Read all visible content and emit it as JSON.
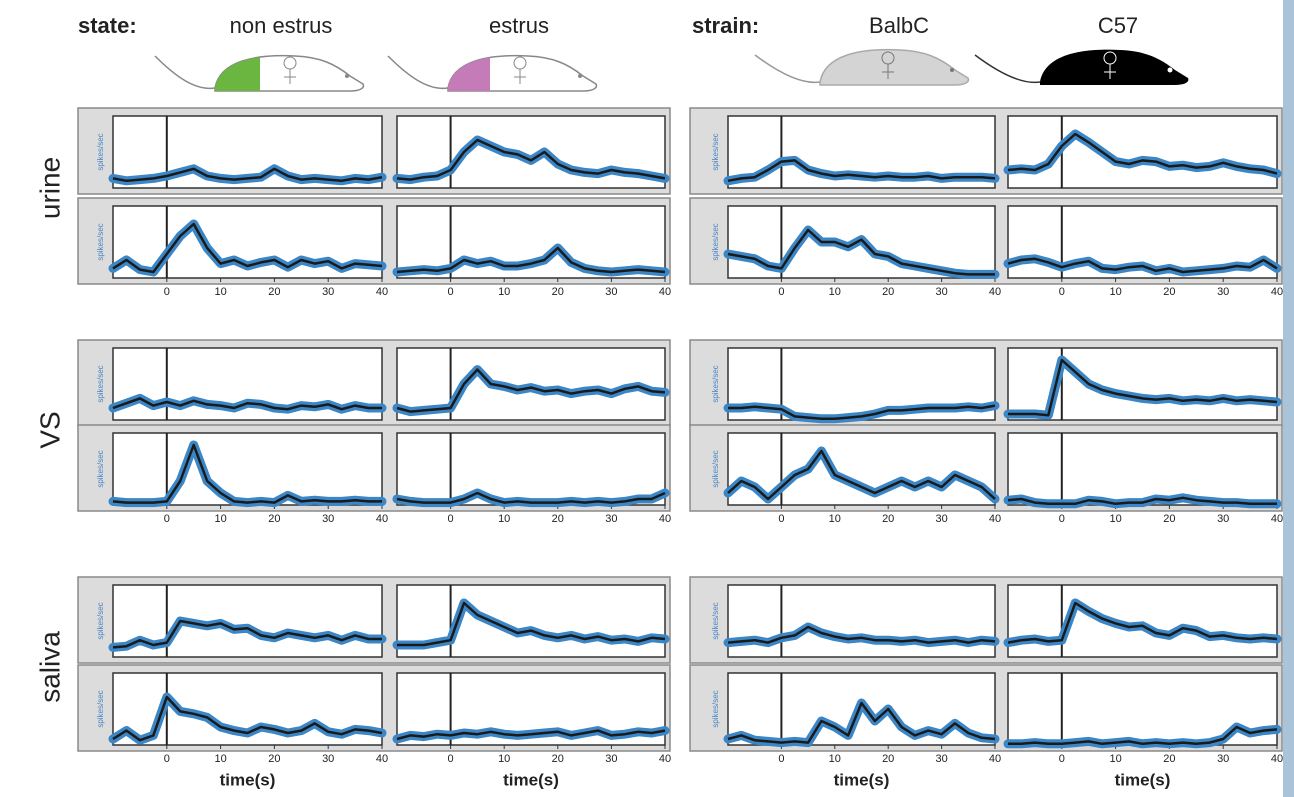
{
  "header": {
    "state_label": "state:",
    "states": [
      "non estrus",
      "estrus"
    ],
    "strain_label": "strain:",
    "strains": [
      "BalbC",
      "C57"
    ]
  },
  "row_labels": [
    "urine",
    "VS",
    "saliva"
  ],
  "chart_data": [
    {
      "type": "line",
      "ylabel": "spikes/sec",
      "x": [
        -10,
        -7.5,
        -5,
        -2.5,
        0,
        2.5,
        5,
        7.5,
        10,
        12.5,
        15,
        17.5,
        20,
        22.5,
        25,
        27.5,
        30,
        32.5,
        35,
        37.5,
        40
      ],
      "values": [
        0.8,
        0.6,
        0.7,
        0.8,
        1,
        1.3,
        1.6,
        1,
        0.8,
        0.7,
        0.8,
        0.9,
        1.6,
        1,
        0.7,
        0.8,
        0.7,
        0.6,
        0.8,
        0.7,
        0.9
      ],
      "xlim": [
        -10,
        40
      ],
      "ylim": [
        0,
        6
      ],
      "vline": 0,
      "color": "#3b86c6"
    },
    {
      "type": "line",
      "x": [
        -10,
        -7.5,
        -5,
        -2.5,
        0,
        2.5,
        5,
        7.5,
        10,
        12.5,
        15,
        17.5,
        20,
        22.5,
        25,
        27.5,
        30,
        32.5,
        35,
        37.5,
        40
      ],
      "values": [
        0.8,
        0.7,
        0.9,
        1,
        1.5,
        3,
        4,
        3.5,
        3,
        2.8,
        2.3,
        3,
        2,
        1.5,
        1.3,
        1.2,
        1.5,
        1.3,
        1.2,
        1,
        0.8
      ],
      "xlim": [
        -10,
        40
      ],
      "ylim": [
        0,
        6
      ],
      "vline": 0,
      "color": "#3b86c6"
    },
    {
      "type": "line",
      "ylabel": "spikes/sec",
      "x": [
        -10,
        -7.5,
        -5,
        -2.5,
        0,
        2.5,
        5,
        7.5,
        10,
        12.5,
        15,
        17.5,
        20,
        22.5,
        25,
        27.5,
        30,
        32.5,
        35,
        37.5,
        40
      ],
      "values": [
        0.6,
        0.8,
        0.9,
        1.5,
        2.2,
        2.3,
        1.5,
        1.2,
        1,
        1.1,
        1,
        0.9,
        1,
        0.9,
        0.9,
        1,
        0.8,
        0.9,
        0.9,
        0.9,
        0.8
      ],
      "xlim": [
        -10,
        40
      ],
      "ylim": [
        0,
        6
      ],
      "vline": 0,
      "color": "#3b86c6"
    },
    {
      "type": "line",
      "x": [
        -10,
        -7.5,
        -5,
        -2.5,
        0,
        2.5,
        5,
        7.5,
        10,
        12.5,
        15,
        17.5,
        20,
        22.5,
        25,
        27.5,
        30,
        32.5,
        35,
        37.5,
        40
      ],
      "values": [
        1.5,
        1.6,
        1.5,
        2,
        3.5,
        4.5,
        3.8,
        3,
        2.2,
        2,
        2.3,
        2.2,
        1.8,
        1.9,
        1.7,
        1.8,
        2.1,
        1.8,
        1.6,
        1.5,
        1.2
      ],
      "xlim": [
        -10,
        40
      ],
      "ylim": [
        0,
        6
      ],
      "vline": 0,
      "color": "#3b86c6"
    },
    {
      "type": "line",
      "ylabel": "spikes/sec",
      "x": [
        -10,
        -7.5,
        -5,
        -2.5,
        0,
        2.5,
        5,
        7.5,
        10,
        12.5,
        15,
        17.5,
        20,
        22.5,
        25,
        27.5,
        30,
        32.5,
        35,
        37.5,
        40
      ],
      "values": [
        0.8,
        1.5,
        0.7,
        0.5,
        2,
        3.5,
        4.5,
        2.5,
        1.2,
        1.5,
        1,
        1.3,
        1.5,
        0.9,
        1.5,
        1.2,
        1.4,
        0.8,
        1.2,
        1.1,
        1
      ],
      "xlim": [
        -10,
        40
      ],
      "ylim": [
        0,
        6
      ],
      "xticks": [
        0,
        10,
        20,
        30,
        40
      ],
      "vline": 0,
      "color": "#3b86c6"
    },
    {
      "type": "line",
      "x": [
        -10,
        -7.5,
        -5,
        -2.5,
        0,
        2.5,
        5,
        7.5,
        10,
        12.5,
        15,
        17.5,
        20,
        22.5,
        25,
        27.5,
        30,
        32.5,
        35,
        37.5,
        40
      ],
      "values": [
        0.5,
        0.6,
        0.7,
        0.6,
        0.8,
        1.5,
        1.2,
        1.4,
        1,
        1,
        1.2,
        1.5,
        2.5,
        1.3,
        0.8,
        0.6,
        0.5,
        0.6,
        0.7,
        0.6,
        0.5
      ],
      "xlim": [
        -10,
        40
      ],
      "ylim": [
        0,
        6
      ],
      "xticks": [
        0,
        10,
        20,
        30,
        40
      ],
      "vline": 0,
      "color": "#3b86c6"
    },
    {
      "type": "line",
      "ylabel": "spikes/sec",
      "x": [
        -10,
        -7.5,
        -5,
        -2.5,
        0,
        2.5,
        5,
        7.5,
        10,
        12.5,
        15,
        17.5,
        20,
        22.5,
        25,
        27.5,
        30,
        32.5,
        35,
        37.5,
        40
      ],
      "values": [
        2,
        1.8,
        1.6,
        1,
        0.8,
        2.5,
        4,
        3,
        3,
        2.6,
        3.2,
        2,
        1.8,
        1.2,
        1,
        0.8,
        0.6,
        0.4,
        0.3,
        0.3,
        0.3
      ],
      "xlim": [
        -10,
        40
      ],
      "ylim": [
        0,
        6
      ],
      "xticks": [
        0,
        10,
        20,
        30,
        40
      ],
      "vline": 0,
      "color": "#3b86c6"
    },
    {
      "type": "line",
      "x": [
        -10,
        -7.5,
        -5,
        -2.5,
        0,
        2.5,
        5,
        7.5,
        10,
        12.5,
        15,
        17.5,
        20,
        22.5,
        25,
        27.5,
        30,
        32.5,
        35,
        37.5,
        40
      ],
      "values": [
        1.2,
        1.5,
        1.6,
        1.3,
        0.9,
        1.2,
        1.4,
        0.8,
        0.7,
        0.9,
        1,
        0.6,
        0.8,
        0.5,
        0.6,
        0.7,
        0.8,
        1,
        0.9,
        1.5,
        0.8
      ],
      "xlim": [
        -10,
        40
      ],
      "ylim": [
        0,
        6
      ],
      "xticks": [
        0,
        10,
        20,
        30,
        40
      ],
      "vline": 0,
      "color": "#3b86c6"
    },
    {
      "type": "line",
      "ylabel": "spikes/sec",
      "x": [
        -10,
        -7.5,
        -5,
        -2.5,
        0,
        2.5,
        5,
        7.5,
        10,
        12.5,
        15,
        17.5,
        20,
        22.5,
        25,
        27.5,
        30,
        32.5,
        35,
        37.5,
        40
      ],
      "values": [
        1,
        1.4,
        1.8,
        1.2,
        1.5,
        1.2,
        1.6,
        1.3,
        1.2,
        1,
        1.4,
        1.3,
        1,
        0.9,
        1.2,
        1.1,
        1.3,
        0.9,
        1.2,
        1,
        1
      ],
      "xlim": [
        -10,
        40
      ],
      "ylim": [
        0,
        6
      ],
      "vline": 0,
      "color": "#3b86c6"
    },
    {
      "type": "line",
      "x": [
        -10,
        -7.5,
        -5,
        -2.5,
        0,
        2.5,
        5,
        7.5,
        10,
        12.5,
        15,
        17.5,
        20,
        22.5,
        25,
        27.5,
        30,
        32.5,
        35,
        37.5,
        40
      ],
      "values": [
        1,
        0.7,
        0.8,
        0.9,
        1,
        3,
        4.2,
        3,
        2.8,
        2.5,
        2.7,
        2.4,
        2.5,
        2.2,
        2.4,
        2.5,
        2.2,
        2.6,
        2.8,
        2.4,
        2.3
      ],
      "xlim": [
        -10,
        40
      ],
      "ylim": [
        0,
        6
      ],
      "vline": 0,
      "color": "#3b86c6"
    },
    {
      "type": "line",
      "ylabel": "spikes/sec",
      "x": [
        -10,
        -7.5,
        -5,
        -2.5,
        0,
        2.5,
        5,
        7.5,
        10,
        12.5,
        15,
        17.5,
        20,
        22.5,
        25,
        27.5,
        30,
        32.5,
        35,
        37.5,
        40
      ],
      "values": [
        1,
        1,
        1.1,
        1,
        0.9,
        0.3,
        0.2,
        0.1,
        0.1,
        0.2,
        0.3,
        0.5,
        0.8,
        0.8,
        0.9,
        1,
        1,
        1,
        1.1,
        1,
        1.2
      ],
      "xlim": [
        -10,
        40
      ],
      "ylim": [
        0,
        6
      ],
      "vline": 0,
      "color": "#3b86c6"
    },
    {
      "type": "line",
      "x": [
        -10,
        -7.5,
        -5,
        -2.5,
        0,
        2.5,
        5,
        7.5,
        10,
        12.5,
        15,
        17.5,
        20,
        22.5,
        25,
        27.5,
        30,
        32.5,
        35,
        37.5,
        40
      ],
      "values": [
        0.5,
        0.5,
        0.5,
        0.4,
        5,
        4,
        3,
        2.5,
        2.2,
        2,
        1.8,
        1.7,
        1.8,
        1.6,
        1.7,
        1.6,
        1.8,
        1.6,
        1.7,
        1.6,
        1.5
      ],
      "xlim": [
        -10,
        40
      ],
      "ylim": [
        0,
        6
      ],
      "vline": 0,
      "color": "#3b86c6"
    },
    {
      "type": "line",
      "ylabel": "spikes/sec",
      "x": [
        -10,
        -7.5,
        -5,
        -2.5,
        0,
        2.5,
        5,
        7.5,
        10,
        12.5,
        15,
        17.5,
        20,
        22.5,
        25,
        27.5,
        30,
        32.5,
        35,
        37.5,
        40
      ],
      "values": [
        0.3,
        0.2,
        0.2,
        0.2,
        0.3,
        2,
        5,
        2,
        1,
        0.3,
        0.2,
        0.3,
        0.2,
        0.8,
        0.3,
        0.4,
        0.3,
        0.3,
        0.4,
        0.3,
        0.3
      ],
      "xlim": [
        -10,
        40
      ],
      "ylim": [
        0,
        6
      ],
      "xticks": [
        0,
        10,
        20,
        30,
        40
      ],
      "vline": 0,
      "color": "#3b86c6"
    },
    {
      "type": "line",
      "x": [
        -10,
        -7.5,
        -5,
        -2.5,
        0,
        2.5,
        5,
        7.5,
        10,
        12.5,
        15,
        17.5,
        20,
        22.5,
        25,
        27.5,
        30,
        32.5,
        35,
        37.5,
        40
      ],
      "values": [
        0.5,
        0.3,
        0.2,
        0.2,
        0.2,
        0.5,
        1,
        0.5,
        0.2,
        0.3,
        0.2,
        0.2,
        0.2,
        0.3,
        0.2,
        0.3,
        0.2,
        0.3,
        0.5,
        0.5,
        1
      ],
      "xlim": [
        -10,
        40
      ],
      "ylim": [
        0,
        6
      ],
      "xticks": [
        0,
        10,
        20,
        30,
        40
      ],
      "vline": 0,
      "color": "#3b86c6"
    },
    {
      "type": "line",
      "ylabel": "spikes/sec",
      "x": [
        -10,
        -7.5,
        -5,
        -2.5,
        0,
        2.5,
        5,
        7.5,
        10,
        12.5,
        15,
        17.5,
        20,
        22.5,
        25,
        27.5,
        30,
        32.5,
        35,
        37.5,
        40
      ],
      "values": [
        1,
        2,
        1.5,
        0.5,
        1.5,
        2.5,
        3,
        4.5,
        2.5,
        2,
        1.5,
        1,
        1.5,
        2,
        1.5,
        2,
        1.5,
        2.5,
        2,
        1.5,
        0.5
      ],
      "xlim": [
        -10,
        40
      ],
      "ylim": [
        0,
        6
      ],
      "xticks": [
        0,
        10,
        20,
        30,
        40
      ],
      "vline": 0,
      "color": "#3b86c6"
    },
    {
      "type": "line",
      "x": [
        -10,
        -7.5,
        -5,
        -2.5,
        0,
        2.5,
        5,
        7.5,
        10,
        12.5,
        15,
        17.5,
        20,
        22.5,
        25,
        27.5,
        30,
        32.5,
        35,
        37.5,
        40
      ],
      "values": [
        0.4,
        0.5,
        0.2,
        0.1,
        0.1,
        0.1,
        0.4,
        0.3,
        0.1,
        0.2,
        0.2,
        0.5,
        0.4,
        0.6,
        0.4,
        0.3,
        0.2,
        0.2,
        0.1,
        0.1,
        0.1
      ],
      "xlim": [
        -10,
        40
      ],
      "ylim": [
        0,
        6
      ],
      "xticks": [
        0,
        10,
        20,
        30,
        40
      ],
      "vline": 0,
      "color": "#3b86c6"
    },
    {
      "type": "line",
      "ylabel": "spikes/sec",
      "x": [
        -10,
        -7.5,
        -5,
        -2.5,
        0,
        2.5,
        5,
        7.5,
        10,
        12.5,
        15,
        17.5,
        20,
        22.5,
        25,
        27.5,
        30,
        32.5,
        35,
        37.5,
        40
      ],
      "values": [
        0.8,
        0.9,
        1.4,
        1,
        1.2,
        3,
        2.8,
        2.6,
        2.8,
        2.3,
        2.4,
        1.8,
        1.6,
        2,
        1.8,
        1.6,
        1.8,
        1.4,
        1.8,
        1.5,
        1.5
      ],
      "xlim": [
        -10,
        40
      ],
      "ylim": [
        0,
        6
      ],
      "vline": 0,
      "color": "#3b86c6"
    },
    {
      "type": "line",
      "x": [
        -10,
        -7.5,
        -5,
        -2.5,
        0,
        2.5,
        5,
        7.5,
        10,
        12.5,
        15,
        17.5,
        20,
        22.5,
        25,
        27.5,
        30,
        32.5,
        35,
        37.5,
        40
      ],
      "values": [
        1,
        1,
        1,
        1.2,
        1.4,
        4.5,
        3.5,
        3,
        2.5,
        2,
        2.2,
        1.8,
        1.6,
        1.8,
        1.5,
        1.7,
        1.4,
        1.5,
        1.3,
        1.6,
        1.5
      ],
      "xlim": [
        -10,
        40
      ],
      "ylim": [
        0,
        6
      ],
      "vline": 0,
      "color": "#3b86c6"
    },
    {
      "type": "line",
      "ylabel": "spikes/sec",
      "x": [
        -10,
        -7.5,
        -5,
        -2.5,
        0,
        2.5,
        5,
        7.5,
        10,
        12.5,
        15,
        17.5,
        20,
        22.5,
        25,
        27.5,
        30,
        32.5,
        35,
        37.5,
        40
      ],
      "values": [
        1.2,
        1.3,
        1.4,
        1.2,
        1.6,
        1.8,
        2.5,
        2,
        1.7,
        1.5,
        1.6,
        1.4,
        1.4,
        1.3,
        1.4,
        1.2,
        1.3,
        1.4,
        1.2,
        1.4,
        1.3
      ],
      "xlim": [
        -10,
        40
      ],
      "ylim": [
        0,
        6
      ],
      "vline": 0,
      "color": "#3b86c6"
    },
    {
      "type": "line",
      "x": [
        -10,
        -7.5,
        -5,
        -2.5,
        0,
        2.5,
        5,
        7.5,
        10,
        12.5,
        15,
        17.5,
        20,
        22.5,
        25,
        27.5,
        30,
        32.5,
        35,
        37.5,
        40
      ],
      "values": [
        1.2,
        1.4,
        1.5,
        1.3,
        1.4,
        4.5,
        3.8,
        3.2,
        2.8,
        2.5,
        2.6,
        2,
        1.8,
        2.4,
        2.2,
        1.7,
        1.8,
        1.6,
        1.5,
        1.6,
        1.5
      ],
      "xlim": [
        -10,
        40
      ],
      "ylim": [
        0,
        6
      ],
      "vline": 0,
      "color": "#3b86c6"
    },
    {
      "type": "line",
      "ylabel": "spikes/sec",
      "xlabel": "time(s)",
      "x": [
        -10,
        -7.5,
        -5,
        -2.5,
        0,
        2.5,
        5,
        7.5,
        10,
        12.5,
        15,
        17.5,
        20,
        22.5,
        25,
        27.5,
        30,
        32.5,
        35,
        37.5,
        40
      ],
      "values": [
        0.5,
        1.2,
        0.4,
        0.8,
        4,
        2.8,
        2.6,
        2.3,
        1.5,
        1.2,
        1,
        1.5,
        1.3,
        1,
        1.2,
        1.8,
        1.1,
        0.9,
        1.3,
        1.2,
        1
      ],
      "xlim": [
        -10,
        40
      ],
      "ylim": [
        0,
        6
      ],
      "xticks": [
        0,
        10,
        20,
        30,
        40
      ],
      "vline": 0,
      "color": "#3b86c6"
    },
    {
      "type": "line",
      "xlabel": "time(s)",
      "x": [
        -10,
        -7.5,
        -5,
        -2.5,
        0,
        2.5,
        5,
        7.5,
        10,
        12.5,
        15,
        17.5,
        20,
        22.5,
        25,
        27.5,
        30,
        32.5,
        35,
        37.5,
        40
      ],
      "values": [
        0.5,
        0.8,
        0.7,
        0.9,
        0.8,
        1,
        0.9,
        1.1,
        0.9,
        0.8,
        0.9,
        1,
        1.1,
        0.8,
        1,
        1.2,
        0.8,
        0.9,
        1.1,
        1,
        1.2
      ],
      "xlim": [
        -10,
        40
      ],
      "ylim": [
        0,
        6
      ],
      "xticks": [
        0,
        10,
        20,
        30,
        40
      ],
      "vline": 0,
      "color": "#3b86c6"
    },
    {
      "type": "line",
      "ylabel": "spikes/sec",
      "xlabel": "time(s)",
      "x": [
        -10,
        -7.5,
        -5,
        -2.5,
        0,
        2.5,
        5,
        7.5,
        10,
        12.5,
        15,
        17.5,
        20,
        22.5,
        25,
        27.5,
        30,
        32.5,
        35,
        37.5,
        40
      ],
      "values": [
        0.5,
        0.8,
        0.4,
        0.3,
        0.2,
        0.3,
        0.2,
        2,
        1.5,
        0.8,
        3.5,
        2,
        3,
        1.5,
        0.8,
        1.2,
        0.9,
        1.8,
        1,
        0.6,
        0.5
      ],
      "xlim": [
        -10,
        40
      ],
      "ylim": [
        0,
        6
      ],
      "xticks": [
        0,
        10,
        20,
        30,
        40
      ],
      "vline": 0,
      "color": "#3b86c6"
    },
    {
      "type": "line",
      "xlabel": "time(s)",
      "x": [
        -10,
        -7.5,
        -5,
        -2.5,
        0,
        2.5,
        5,
        7.5,
        10,
        12.5,
        15,
        17.5,
        20,
        22.5,
        25,
        27.5,
        30,
        32.5,
        35,
        37.5,
        40
      ],
      "values": [
        0.1,
        0.1,
        0.2,
        0.1,
        0.1,
        0.2,
        0.3,
        0.1,
        0.2,
        0.3,
        0.1,
        0.2,
        0.1,
        0.2,
        0.1,
        0.2,
        0.5,
        1.5,
        1,
        1.2,
        1.3
      ],
      "xlim": [
        -10,
        40
      ],
      "ylim": [
        0,
        6
      ],
      "xticks": [
        0,
        10,
        20,
        30,
        40
      ],
      "vline": 0,
      "color": "#3b86c6"
    }
  ]
}
